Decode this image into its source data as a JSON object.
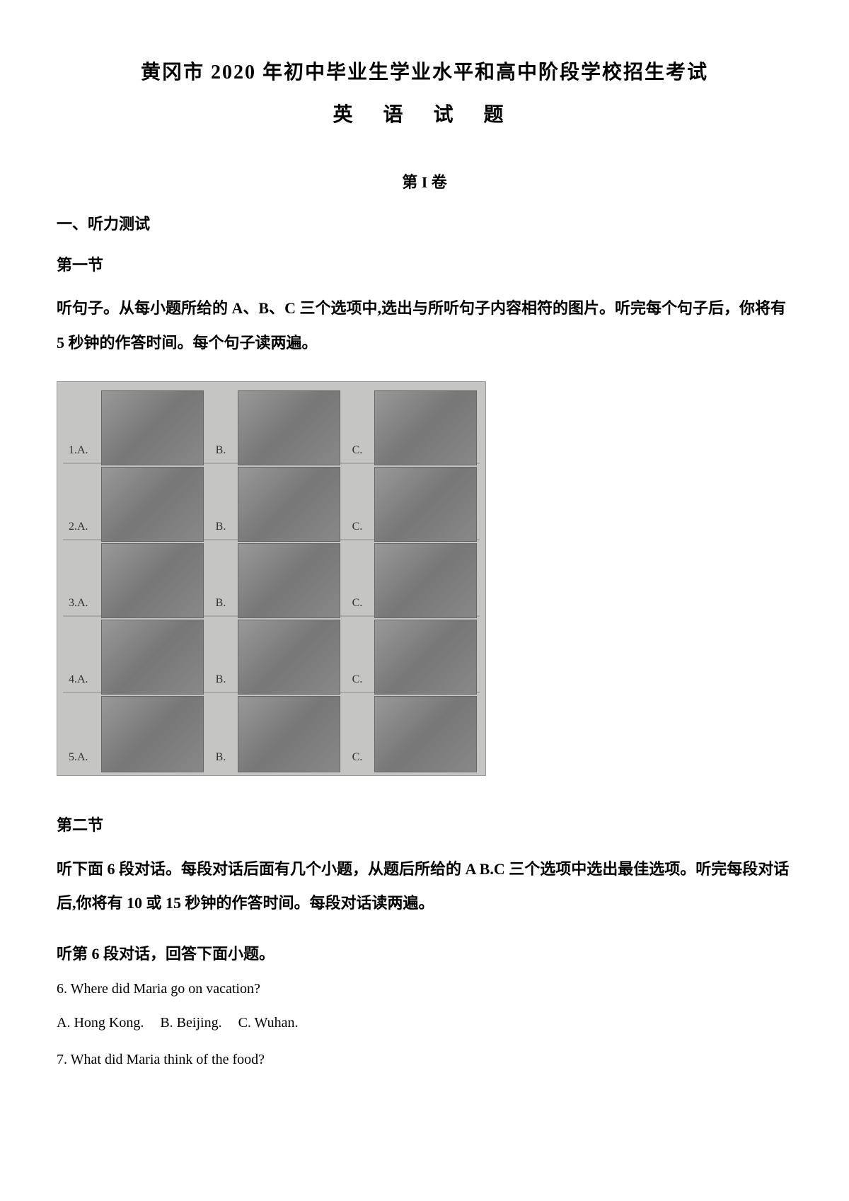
{
  "main_title": "黄冈市 2020 年初中毕业生学业水平和高中阶段学校招生考试",
  "subject_title": "英 语 试 题",
  "section_label": "第 I 卷",
  "part1": {
    "heading": "一、听力测试",
    "sub1": "第一节",
    "instruction": "听句子。从每小题所给的 A、B、C 三个选项中,选出与所听句子内容相符的图片。听完每个句子后，你将有 5 秒钟的作答时间。每个句子读两遍。",
    "grid": {
      "rows": [
        "1.A.",
        "2.A.",
        "3.A.",
        "4.A.",
        "5.A."
      ],
      "col_labels": [
        "B.",
        "C."
      ]
    },
    "sub2": "第二节",
    "instruction2": "听下面 6 段对话。每段对话后面有几个小题，从题后所给的 A B.C 三个选项中选出最佳选项。听完每段对话后,你将有 10 或 15 秒钟的作答时间。每段对话读两遍。",
    "dialogue_heading": "听第 6 段对话，回答下面小题。"
  },
  "questions": {
    "q6": {
      "text": "6. Where did Maria go on vacation?",
      "options": [
        "A. Hong Kong.",
        "B. Beijing.",
        "C. Wuhan."
      ]
    },
    "q7": {
      "text": "7. What did Maria think of the food?"
    }
  },
  "colors": {
    "text": "#000000",
    "background": "#ffffff",
    "grid_bg": "#c5c5c3",
    "cell_bg": "#888888"
  }
}
